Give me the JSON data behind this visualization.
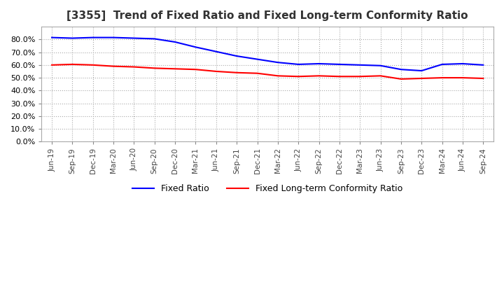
{
  "title": "[3355]  Trend of Fixed Ratio and Fixed Long-term Conformity Ratio",
  "x_labels": [
    "Jun-19",
    "Sep-19",
    "Dec-19",
    "Mar-20",
    "Jun-20",
    "Sep-20",
    "Dec-20",
    "Mar-21",
    "Jun-21",
    "Sep-21",
    "Dec-21",
    "Mar-22",
    "Jun-22",
    "Sep-22",
    "Dec-22",
    "Mar-23",
    "Jun-23",
    "Sep-23",
    "Dec-23",
    "Mar-24",
    "Jun-24",
    "Sep-24"
  ],
  "fixed_ratio": [
    81.5,
    81.0,
    81.5,
    81.5,
    81.0,
    80.5,
    78.0,
    74.0,
    70.5,
    67.0,
    64.5,
    62.0,
    60.5,
    61.0,
    60.5,
    60.0,
    59.5,
    56.5,
    55.5,
    60.5,
    61.0,
    60.0
  ],
  "fixed_lt_ratio": [
    60.0,
    60.5,
    60.0,
    59.0,
    58.5,
    57.5,
    57.0,
    56.5,
    55.0,
    54.0,
    53.5,
    51.5,
    51.0,
    51.5,
    51.0,
    51.0,
    51.5,
    49.0,
    49.5,
    50.0,
    50.0,
    49.5
  ],
  "fixed_ratio_color": "#0000ff",
  "fixed_lt_ratio_color": "#ff0000",
  "ylim": [
    0,
    90
  ],
  "yticks": [
    0,
    10,
    20,
    30,
    40,
    50,
    60,
    70,
    80
  ],
  "background_color": "#ffffff",
  "grid_color": "#aaaaaa",
  "title_fontsize": 11,
  "legend_fixed": "Fixed Ratio",
  "legend_fixed_lt": "Fixed Long-term Conformity Ratio"
}
